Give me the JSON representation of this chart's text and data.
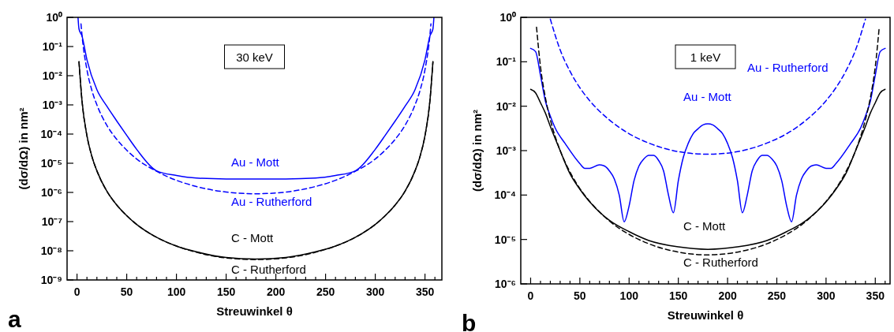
{
  "chart_data": [
    {
      "type": "line",
      "xlabel": "Streuwinkel  θ",
      "ylabel": "(dσ/dΩ) in nm²",
      "log": "y",
      "grid": false,
      "xlim": [
        -10,
        367
      ],
      "xticks": [
        0,
        {
          "value": 10,
          "label": null
        },
        {
          "value": 20,
          "label": null
        },
        {
          "value": 30,
          "label": null
        },
        {
          "value": 40,
          "label": null
        },
        50,
        {
          "value": 60,
          "label": null
        },
        {
          "value": 70,
          "label": null
        },
        {
          "value": 80,
          "label": null
        },
        {
          "value": 90,
          "label": null
        },
        100,
        {
          "value": 110,
          "label": null
        },
        {
          "value": 120,
          "label": null
        },
        {
          "value": 130,
          "label": null
        },
        {
          "value": 140,
          "label": null
        },
        150,
        {
          "value": 160,
          "label": null
        },
        {
          "value": 170,
          "label": null
        },
        {
          "value": 180,
          "label": null
        },
        {
          "value": 190,
          "label": null
        },
        200,
        {
          "value": 210,
          "label": null
        },
        {
          "value": 220,
          "label": null
        },
        {
          "value": 230,
          "label": null
        },
        {
          "value": 240,
          "label": null
        },
        250,
        {
          "value": 260,
          "label": null
        },
        {
          "value": 270,
          "label": null
        },
        {
          "value": 280,
          "label": null
        },
        {
          "value": 290,
          "label": null
        },
        300,
        {
          "value": 310,
          "label": null
        },
        {
          "value": 320,
          "label": null
        },
        {
          "value": 330,
          "label": null
        },
        {
          "value": 340,
          "label": null
        },
        350,
        {
          "value": 360,
          "label": null
        }
      ],
      "ylim": [
        1e-09,
        1
      ],
      "yticks": [
        {
          "value": 1e-09,
          "label": "10⁻⁹"
        },
        {
          "value": 1e-08,
          "label": "10⁻⁸"
        },
        {
          "value": 1e-07,
          "label": "10⁻⁷"
        },
        {
          "value": 1e-06,
          "label": "10⁻⁶"
        },
        {
          "value": 1e-05,
          "label": "10⁻⁵"
        },
        {
          "value": 0.0001,
          "label": "10⁻⁴"
        },
        {
          "value": 0.001,
          "label": "10⁻³"
        },
        {
          "value": 0.01,
          "label": "10⁻²"
        },
        {
          "value": 0.1,
          "label": "10⁻¹"
        },
        {
          "value": 1,
          "label": "10⁰"
        }
      ],
      "annotations": [
        "30 keV",
        "a"
      ],
      "series": [
        {
          "name": "Au - Mott",
          "color": "#0000ff",
          "line_style": "solid",
          "x": [
            1,
            2,
            5,
            10,
            20,
            30,
            40,
            50,
            60,
            80,
            100,
            120,
            150,
            180,
            210,
            240,
            260,
            280,
            300,
            310,
            320,
            330,
            340,
            350,
            355,
            358,
            359
          ],
          "values": [
            1,
            0.4,
            0.23,
            0.035,
            0.0033,
            0.0009,
            0.00028,
            9e-05,
            3e-05,
            5.5e-06,
            3.8e-06,
            3.1e-06,
            2.9e-06,
            2.9e-06,
            2.9e-06,
            3.1e-06,
            3.8e-06,
            5.5e-06,
            3e-05,
            9e-05,
            0.00028,
            0.0009,
            0.0033,
            0.035,
            0.23,
            0.4,
            1
          ]
        },
        {
          "name": "Au - Rutherford",
          "color": "#0000ff",
          "line_style": "dashed",
          "x": [
            4,
            5,
            10,
            15,
            20,
            30,
            40,
            50,
            60,
            80,
            100,
            120,
            150,
            180,
            210,
            240,
            260,
            280,
            300,
            310,
            320,
            330,
            340,
            345,
            350,
            355,
            356
          ],
          "values": [
            0.6,
            0.25,
            0.016,
            0.0031,
            0.001,
            0.0002,
            6.6e-05,
            2.8e-05,
            1.4e-05,
            5.3e-06,
            2.6e-06,
            1.6e-06,
            1.03e-06,
            9e-07,
            1.03e-06,
            1.6e-06,
            2.6e-06,
            5.3e-06,
            1.4e-05,
            2.8e-05,
            6.6e-05,
            0.0002,
            0.001,
            0.0031,
            0.016,
            0.25,
            0.6
          ]
        },
        {
          "name": "C - Mott",
          "color": "#000000",
          "line_style": "solid",
          "x": [
            2,
            5,
            10,
            15,
            20,
            30,
            40,
            50,
            60,
            80,
            100,
            120,
            150,
            180,
            210,
            240,
            260,
            280,
            300,
            310,
            320,
            330,
            340,
            345,
            350,
            355,
            358
          ],
          "values": [
            0.03,
            0.0014,
            8.7e-05,
            1.7e-05,
            5.5e-06,
            1.1e-06,
            3.7e-07,
            1.6e-07,
            8e-08,
            2.9e-08,
            1.45e-08,
            9.2e-09,
            5.9e-09,
            5.2e-09,
            5.9e-09,
            9.2e-09,
            1.45e-08,
            2.9e-08,
            8e-08,
            1.6e-07,
            3.7e-07,
            1.1e-06,
            5.5e-06,
            1.7e-05,
            8.7e-05,
            0.0014,
            0.03
          ]
        },
        {
          "name": "C - Rutherford",
          "color": "#000000",
          "line_style": "dashed",
          "x": [
            2,
            5,
            10,
            15,
            20,
            30,
            40,
            50,
            60,
            80,
            100,
            120,
            150,
            180,
            210,
            240,
            260,
            280,
            300,
            310,
            320,
            330,
            340,
            345,
            350,
            355,
            358
          ],
          "values": [
            0.03,
            0.0014,
            8.7e-05,
            1.7e-05,
            5.5e-06,
            1.1e-06,
            3.7e-07,
            1.6e-07,
            8e-08,
            2.9e-08,
            1.45e-08,
            8.9e-09,
            5.7e-09,
            5e-09,
            5.7e-09,
            8.9e-09,
            1.45e-08,
            2.9e-08,
            8e-08,
            1.6e-07,
            3.7e-07,
            1.1e-06,
            5.5e-06,
            1.7e-05,
            8.7e-05,
            0.0014,
            0.03
          ]
        }
      ]
    },
    {
      "type": "line",
      "xlabel": "Streuwinkel  θ",
      "ylabel": "(dσ/dΩ) in nm²",
      "log": "y",
      "grid": false,
      "xlim": [
        -10,
        365
      ],
      "xticks": [
        0,
        {
          "value": 10,
          "label": null
        },
        {
          "value": 20,
          "label": null
        },
        {
          "value": 30,
          "label": null
        },
        {
          "value": 40,
          "label": null
        },
        50,
        {
          "value": 60,
          "label": null
        },
        {
          "value": 70,
          "label": null
        },
        {
          "value": 80,
          "label": null
        },
        {
          "value": 90,
          "label": null
        },
        100,
        {
          "value": 110,
          "label": null
        },
        {
          "value": 120,
          "label": null
        },
        {
          "value": 130,
          "label": null
        },
        {
          "value": 140,
          "label": null
        },
        150,
        {
          "value": 160,
          "label": null
        },
        {
          "value": 170,
          "label": null
        },
        {
          "value": 180,
          "label": null
        },
        {
          "value": 190,
          "label": null
        },
        200,
        {
          "value": 210,
          "label": null
        },
        {
          "value": 220,
          "label": null
        },
        {
          "value": 230,
          "label": null
        },
        {
          "value": 240,
          "label": null
        },
        250,
        {
          "value": 260,
          "label": null
        },
        {
          "value": 270,
          "label": null
        },
        {
          "value": 280,
          "label": null
        },
        {
          "value": 290,
          "label": null
        },
        300,
        {
          "value": 310,
          "label": null
        },
        {
          "value": 320,
          "label": null
        },
        {
          "value": 330,
          "label": null
        },
        {
          "value": 340,
          "label": null
        },
        350,
        {
          "value": 360,
          "label": null
        }
      ],
      "ylim": [
        1e-06,
        1
      ],
      "yticks": [
        {
          "value": 1e-06,
          "label": "10⁻⁶"
        },
        {
          "value": 1e-05,
          "label": "10⁻⁵"
        },
        {
          "value": 0.0001,
          "label": "10⁻⁴"
        },
        {
          "value": 0.001,
          "label": "10⁻³"
        },
        {
          "value": 0.01,
          "label": "10⁻²"
        },
        {
          "value": 0.1,
          "label": "10⁻¹"
        },
        {
          "value": 1,
          "label": "10⁰"
        }
      ],
      "annotations": [
        "1 keV",
        "b"
      ],
      "series": [
        {
          "name": "Au - Mott",
          "color": "#0000ff",
          "line_style": "solid",
          "x": [
            0,
            5,
            10,
            15,
            20,
            25,
            35,
            50,
            55,
            60,
            70,
            75,
            80,
            85,
            90,
            95,
            100,
            105,
            110,
            115,
            120,
            125,
            130,
            135,
            140,
            145,
            150,
            155,
            160,
            165,
            170,
            175,
            180,
            185,
            190,
            195,
            200,
            205,
            210,
            215,
            220,
            225,
            230,
            235,
            240,
            245,
            250,
            255,
            260,
            265,
            270,
            275,
            280,
            285,
            290,
            300,
            305,
            310,
            325,
            335,
            340,
            345,
            350,
            355,
            360
          ],
          "values": [
            0.2,
            0.17,
            0.05,
            0.013,
            0.006,
            0.0032,
            0.00145,
            0.00051,
            0.0004,
            0.0004,
            0.00048,
            0.00045,
            0.00035,
            0.00023,
            0.0001,
            2.5e-05,
            5.7e-05,
            0.00021,
            0.00045,
            0.00065,
            0.00078,
            0.00078,
            0.0006,
            0.00035,
            0.0001,
            4e-05,
            0.00021,
            0.0007,
            0.00145,
            0.0024,
            0.0031,
            0.0038,
            0.004,
            0.0038,
            0.0031,
            0.0024,
            0.00145,
            0.0007,
            0.00021,
            4e-05,
            0.0001,
            0.00035,
            0.0006,
            0.00078,
            0.00078,
            0.00065,
            0.00045,
            0.00021,
            5.7e-05,
            2.5e-05,
            0.0001,
            0.00023,
            0.00035,
            0.00045,
            0.00048,
            0.0004,
            0.0004,
            0.00051,
            0.00145,
            0.0032,
            0.006,
            0.013,
            0.05,
            0.17,
            0.2
          ]
        },
        {
          "name": "Au - Rutherford",
          "color": "#0000ff",
          "line_style": "dashed",
          "x": [
            20,
            30,
            40,
            50,
            60,
            80,
            100,
            120,
            150,
            180,
            210,
            240,
            260,
            280,
            300,
            310,
            320,
            330,
            340
          ],
          "values": [
            0.91,
            0.185,
            0.061,
            0.026,
            0.0133,
            0.0049,
            0.0024,
            0.00148,
            0.00095,
            0.00083,
            0.00095,
            0.00148,
            0.0024,
            0.0049,
            0.0133,
            0.026,
            0.061,
            0.185,
            0.91
          ]
        },
        {
          "name": "C - Mott",
          "color": "#000000",
          "line_style": "solid",
          "x": [
            0,
            5,
            10,
            15,
            20,
            30,
            40,
            50,
            60,
            80,
            100,
            120,
            150,
            180,
            210,
            240,
            260,
            280,
            300,
            310,
            320,
            330,
            340,
            345,
            350,
            355,
            360
          ],
          "values": [
            0.024,
            0.02,
            0.012,
            0.007,
            0.0035,
            0.001,
            0.0003,
            0.000135,
            7e-05,
            2.7e-05,
            1.5e-05,
            9.5e-06,
            6.8e-06,
            6e-06,
            6.8e-06,
            9.5e-06,
            1.5e-05,
            2.7e-05,
            7e-05,
            0.000135,
            0.0003,
            0.001,
            0.0035,
            0.007,
            0.012,
            0.02,
            0.024
          ]
        },
        {
          "name": "C - Rutherford",
          "color": "#000000",
          "line_style": "dashed",
          "x": [
            6,
            10,
            15,
            20,
            30,
            40,
            50,
            60,
            80,
            100,
            120,
            150,
            180,
            210,
            240,
            260,
            280,
            300,
            310,
            320,
            330,
            340,
            345,
            350,
            354
          ],
          "values": [
            0.6,
            0.078,
            0.0155,
            0.005,
            0.001,
            0.00033,
            0.00014,
            7.2e-05,
            2.6e-05,
            1.3e-05,
            8e-06,
            5.2e-06,
            4.5e-06,
            5.2e-06,
            8e-06,
            1.3e-05,
            2.6e-05,
            7.2e-05,
            0.00014,
            0.00033,
            0.001,
            0.005,
            0.0155,
            0.078,
            0.6
          ]
        }
      ]
    }
  ]
}
